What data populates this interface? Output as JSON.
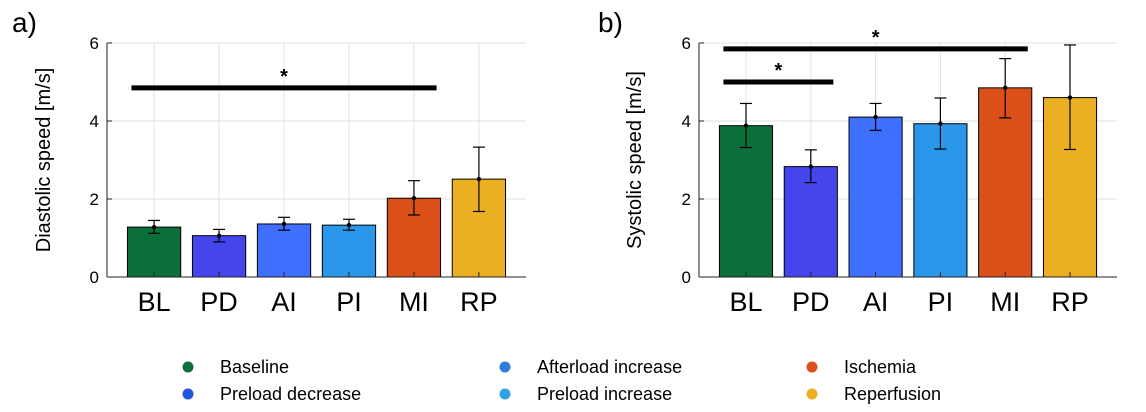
{
  "chart_data": [
    {
      "type": "bar",
      "panel_label": "a)",
      "categories": [
        "BL",
        "PD",
        "AI",
        "PI",
        "MI",
        "RP"
      ],
      "values": [
        1.28,
        1.06,
        1.36,
        1.33,
        2.02,
        2.51
      ],
      "error_low": [
        1.12,
        0.9,
        1.2,
        1.2,
        1.59,
        1.68
      ],
      "error_high": [
        1.45,
        1.22,
        1.53,
        1.48,
        2.47,
        3.33
      ],
      "ylabel": "Diastolic speed [m/s]",
      "xlabel": "",
      "ylim": [
        0,
        6
      ],
      "yticks": [
        0,
        2,
        4,
        6
      ],
      "grid": true,
      "significance": [
        {
          "from": "BL",
          "to": "MI",
          "y": 4.85,
          "label": "*"
        }
      ]
    },
    {
      "type": "bar",
      "panel_label": "b)",
      "categories": [
        "BL",
        "PD",
        "AI",
        "PI",
        "MI",
        "RP"
      ],
      "values": [
        3.88,
        2.83,
        4.1,
        3.93,
        4.85,
        4.6
      ],
      "error_low": [
        3.32,
        2.42,
        3.76,
        3.28,
        4.08,
        3.27
      ],
      "error_high": [
        4.45,
        3.26,
        4.45,
        4.59,
        5.6,
        5.95
      ],
      "ylabel": "Systolic speed [m/s]",
      "xlabel": "",
      "ylim": [
        0,
        6
      ],
      "yticks": [
        0,
        2,
        4,
        6
      ],
      "grid": true,
      "significance": [
        {
          "from": "BL",
          "to": "PD",
          "y": 5.0,
          "label": "*"
        },
        {
          "from": "BL",
          "to": "MI",
          "y": 5.85,
          "label": "*"
        }
      ]
    }
  ],
  "colors": {
    "BL": "#0b6e3b",
    "PD": "#4545ee",
    "AI": "#3f6fff",
    "PI": "#2b97ea",
    "MI": "#db5019",
    "RP": "#ebb021"
  },
  "legend": {
    "placement": "bottom",
    "items": [
      {
        "label": "Baseline",
        "color": "#0b6e3b"
      },
      {
        "label": "Preload decrease",
        "color": "#2255dd"
      },
      {
        "label": "Afterload increase",
        "color": "#2e7ddd"
      },
      {
        "label": "Preload increase",
        "color": "#2ea4e6"
      },
      {
        "label": "Ischemia",
        "color": "#db5019"
      },
      {
        "label": "Reperfusion",
        "color": "#ebb021"
      }
    ]
  }
}
